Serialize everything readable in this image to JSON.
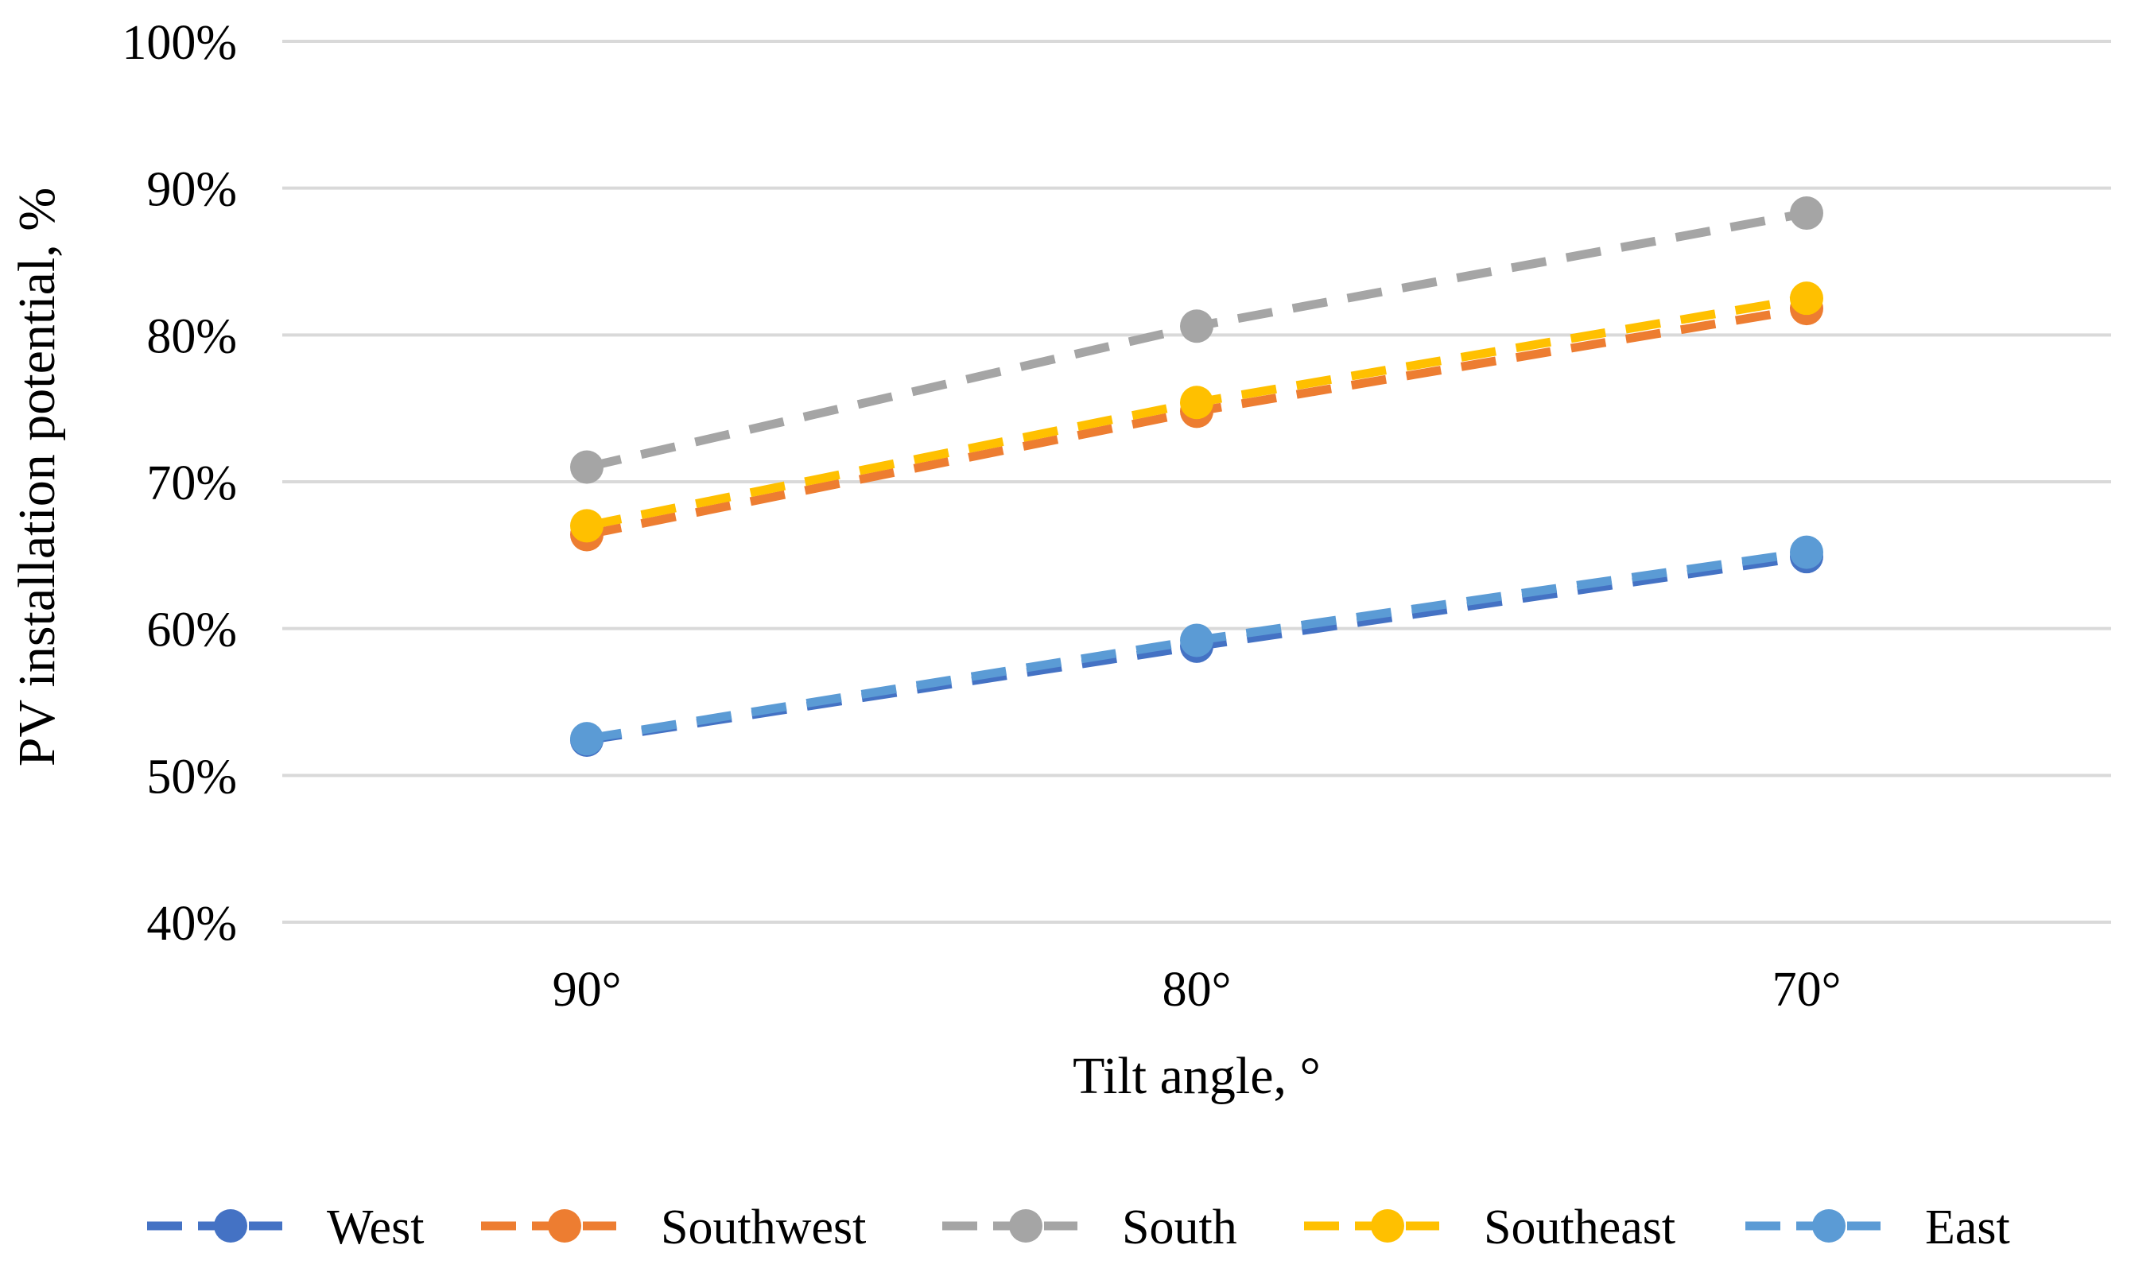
{
  "chart_data": {
    "type": "line",
    "title": "",
    "xlabel": "Tilt angle, °",
    "ylabel": "PV installation potential, %",
    "categories": [
      "90°",
      "80°",
      "70°"
    ],
    "ylim": [
      0.4,
      1.0
    ],
    "yticks": [
      0.4,
      0.5,
      0.6,
      0.7,
      0.8,
      0.9,
      1.0
    ],
    "ytick_labels": [
      "40%",
      "50%",
      "60%",
      "70%",
      "80%",
      "90%",
      "100%"
    ],
    "grid": true,
    "legend_position": "bottom",
    "series": [
      {
        "name": "West",
        "color": "#4472C4",
        "values": [
          0.524,
          0.588,
          0.649
        ]
      },
      {
        "name": "Southwest",
        "color": "#ED7D31",
        "values": [
          0.664,
          0.748,
          0.818
        ]
      },
      {
        "name": "South",
        "color": "#A5A5A5",
        "values": [
          0.71,
          0.806,
          0.883
        ]
      },
      {
        "name": "Southeast",
        "color": "#FFC000",
        "values": [
          0.67,
          0.754,
          0.825
        ]
      },
      {
        "name": "East",
        "color": "#5B9BD5",
        "values": [
          0.525,
          0.592,
          0.652
        ]
      }
    ]
  }
}
